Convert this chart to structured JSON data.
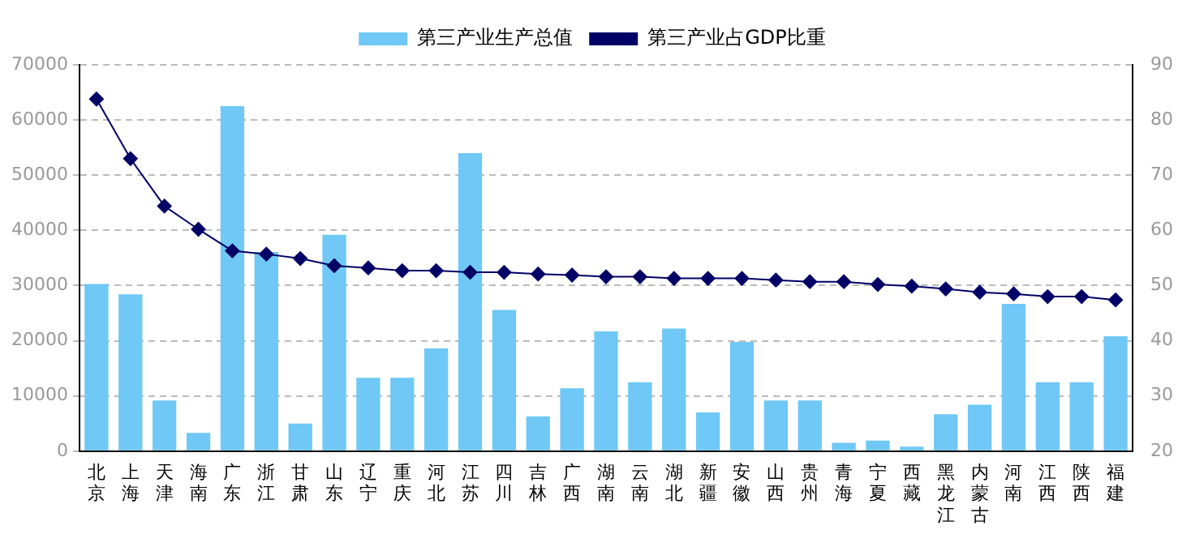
{
  "chart_data": {
    "type": "bar",
    "categories": [
      "北京",
      "上海",
      "天津",
      "海南",
      "广东",
      "浙江",
      "甘肃",
      "山东",
      "辽宁",
      "重庆",
      "河北",
      "江苏",
      "四川",
      "吉林",
      "广西",
      "湖南",
      "云南",
      "湖北",
      "新疆",
      "安徽",
      "山西",
      "贵州",
      "青海",
      "宁夏",
      "西藏",
      "黑龙江",
      "内蒙古",
      "河南",
      "江西",
      "陕西",
      "福建"
    ],
    "series": [
      {
        "name": "第三产业生产总值",
        "color": "#6fc8f5",
        "values": [
          30300,
          28400,
          9200,
          3300,
          62500,
          36100,
          5000,
          39200,
          13300,
          13300,
          18600,
          54000,
          25600,
          6300,
          11400,
          21700,
          12500,
          22200,
          7000,
          19800,
          9200,
          9200,
          1500,
          1900,
          800,
          6700,
          8400,
          26700,
          12500,
          12500,
          20800
        ]
      },
      {
        "name": "第三产业占GDP比重",
        "type": "line",
        "axis": "y2",
        "color": "#000066",
        "marker": "diamond",
        "line_style": "solid",
        "values": [
          83.8,
          73.0,
          64.4,
          60.2,
          56.3,
          55.7,
          54.9,
          53.6,
          53.2,
          52.7,
          52.7,
          52.4,
          52.4,
          52.1,
          51.9,
          51.6,
          51.6,
          51.3,
          51.3,
          51.3,
          51.0,
          50.7,
          50.7,
          50.2,
          49.9,
          49.4,
          48.8,
          48.5,
          48.0,
          48.0,
          47.4
        ]
      }
    ],
    "ylim": [
      0,
      70000
    ],
    "yticks": [
      0,
      10000,
      20000,
      30000,
      40000,
      50000,
      60000,
      70000
    ],
    "y2lim": [
      20,
      90
    ],
    "y2ticks": [
      20,
      30,
      40,
      50,
      60,
      70,
      80,
      90
    ],
    "grid": "y",
    "legend": "top"
  }
}
